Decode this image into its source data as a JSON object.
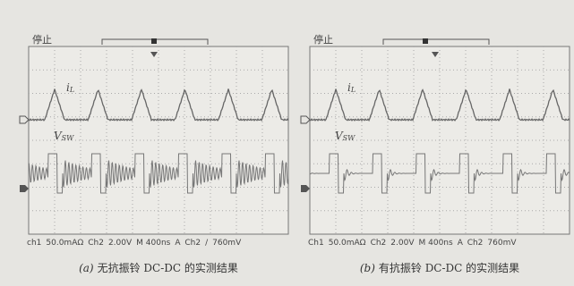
{
  "panels": [
    {
      "status": "停止",
      "trace1": {
        "label": "i",
        "sub": "L"
      },
      "trace2": {
        "label": "V",
        "sub": "SW"
      },
      "readout": [
        "ch1",
        "50.0mAΩ",
        "Ch2",
        "2.00V",
        "M 400ns",
        "A",
        "Ch2",
        "/",
        "760mV"
      ],
      "caption": {
        "tag": "(a)",
        "text": "无抗振铃 DC-DC 的实测结果"
      }
    },
    {
      "status": "停止",
      "trace1": {
        "label": "i",
        "sub": "L"
      },
      "trace2": {
        "label": "V",
        "sub": "SW"
      },
      "readout": [
        "Ch1",
        "50.0mAΩ",
        "Ch2",
        "2.00V",
        "M 400ns",
        "A",
        "Ch2",
        "760mV"
      ],
      "caption": {
        "tag": "(b)",
        "text": "有抗振铃 DC-DC 的实测结果"
      }
    }
  ]
}
